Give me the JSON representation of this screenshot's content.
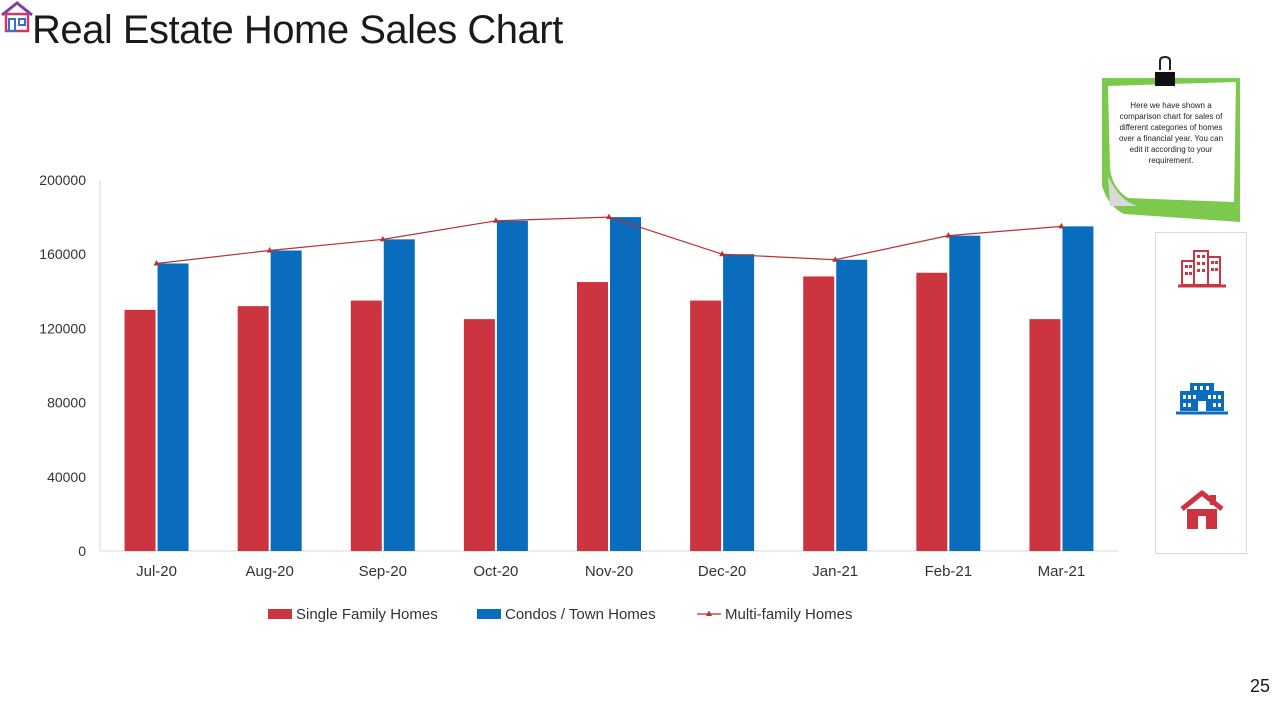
{
  "slide": {
    "title": "Real Estate Home Sales Chart",
    "page_number": "25",
    "note_text": "Here we have shown a comparison chart for sales of different categories of homes over a financial year. You can edit it according to your requirement."
  },
  "colors": {
    "single_family": "#cc3540",
    "condos": "#0a6cbd",
    "multi_family": "#b83232",
    "axis": "#d9d9d9",
    "tick_text": "#333333",
    "note_green": "#7cc94e"
  },
  "icons": [
    "office-buildings-icon",
    "apartment-complex-icon",
    "house-icon"
  ],
  "chart_data": {
    "type": "bar",
    "title": "",
    "xlabel": "",
    "ylabel": "",
    "ylim": [
      0,
      200000
    ],
    "yticks": [
      0,
      40000,
      80000,
      120000,
      160000,
      200000
    ],
    "grid": false,
    "legend_position": "bottom",
    "categories": [
      "Jul-20",
      "Aug-20",
      "Sep-20",
      "Oct-20",
      "Nov-20",
      "Dec-20",
      "Jan-21",
      "Feb-21",
      "Mar-21"
    ],
    "series": [
      {
        "name": "Single Family Homes",
        "type": "bar",
        "values": [
          130000,
          132000,
          135000,
          125000,
          145000,
          135000,
          148000,
          150000,
          125000
        ]
      },
      {
        "name": "Condos / Town Homes",
        "type": "bar",
        "values": [
          155000,
          162000,
          168000,
          178000,
          180000,
          160000,
          157000,
          170000,
          175000
        ]
      },
      {
        "name": "Multi-family Homes",
        "type": "line",
        "values": [
          155000,
          162000,
          168000,
          178000,
          180000,
          160000,
          157000,
          170000,
          175000
        ]
      }
    ]
  }
}
